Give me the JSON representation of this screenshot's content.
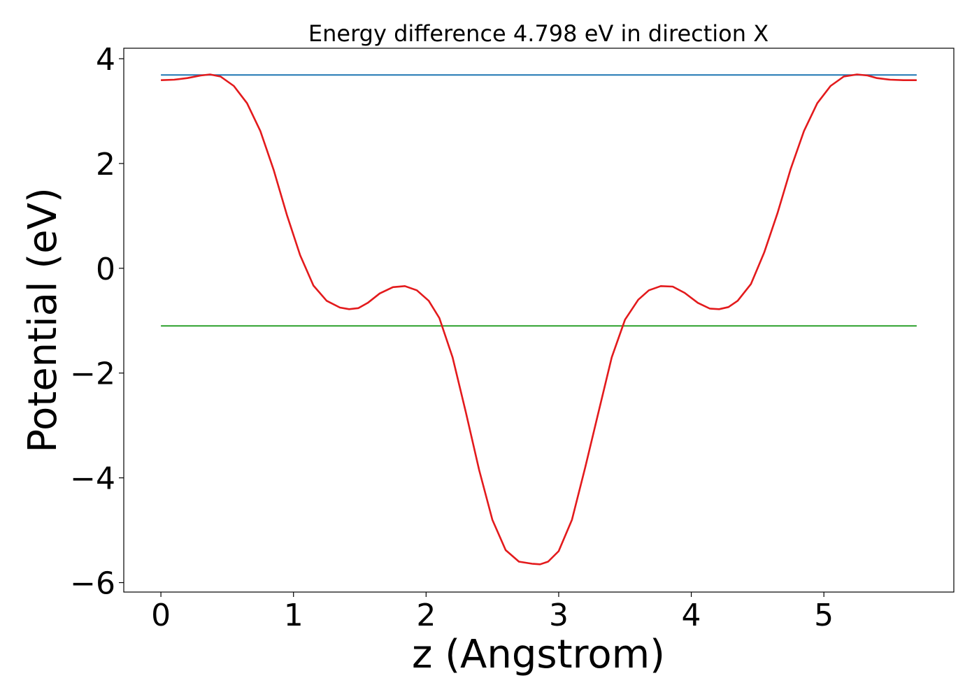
{
  "chart_data": {
    "type": "line",
    "title": "Energy difference 4.798 eV in direction X",
    "xlabel": "z (Angstrom)",
    "ylabel": "Potential (eV)",
    "xlim": [
      -0.28,
      5.98
    ],
    "ylim": [
      -6.18,
      4.2
    ],
    "xticks": [
      0,
      1,
      2,
      3,
      4,
      5
    ],
    "yticks": [
      -6,
      -4,
      -2,
      0,
      2,
      4
    ],
    "xtick_labels": [
      "0",
      "1",
      "2",
      "3",
      "4",
      "5"
    ],
    "ytick_labels": [
      "−6",
      "−4",
      "−2",
      "0",
      "2",
      "4"
    ],
    "grid": false,
    "series": [
      {
        "color": "#1f77b4",
        "x": [
          0,
          5.7
        ],
        "y": [
          3.69,
          3.69
        ]
      },
      {
        "color": "#2ca02c",
        "x": [
          0,
          5.7
        ],
        "y": [
          -1.1,
          -1.1
        ]
      },
      {
        "color": "#e31a1c",
        "x": [
          0.0,
          0.1,
          0.2,
          0.3,
          0.37,
          0.45,
          0.55,
          0.65,
          0.75,
          0.85,
          0.95,
          1.05,
          1.15,
          1.25,
          1.35,
          1.42,
          1.49,
          1.56,
          1.65,
          1.75,
          1.84,
          1.93,
          2.02,
          2.1,
          2.2,
          2.3,
          2.4,
          2.5,
          2.6,
          2.7,
          2.8,
          2.86,
          2.92,
          3.0,
          3.1,
          3.2,
          3.3,
          3.4,
          3.5,
          3.6,
          3.68,
          3.77,
          3.86,
          3.95,
          4.05,
          4.14,
          4.21,
          4.28,
          4.35,
          4.45,
          4.55,
          4.65,
          4.75,
          4.85,
          4.95,
          5.05,
          5.15,
          5.25,
          5.33,
          5.4,
          5.5,
          5.6,
          5.7
        ],
        "y": [
          3.59,
          3.6,
          3.63,
          3.68,
          3.7,
          3.66,
          3.48,
          3.15,
          2.62,
          1.88,
          1.02,
          0.25,
          -0.33,
          -0.62,
          -0.75,
          -0.78,
          -0.76,
          -0.66,
          -0.48,
          -0.36,
          -0.34,
          -0.42,
          -0.62,
          -0.95,
          -1.7,
          -2.75,
          -3.85,
          -4.8,
          -5.38,
          -5.6,
          -5.64,
          -5.65,
          -5.6,
          -5.4,
          -4.8,
          -3.8,
          -2.75,
          -1.7,
          -0.98,
          -0.6,
          -0.42,
          -0.34,
          -0.35,
          -0.47,
          -0.66,
          -0.77,
          -0.78,
          -0.74,
          -0.62,
          -0.3,
          0.3,
          1.05,
          1.9,
          2.62,
          3.15,
          3.48,
          3.66,
          3.7,
          3.68,
          3.63,
          3.6,
          3.59,
          3.59
        ]
      }
    ]
  }
}
